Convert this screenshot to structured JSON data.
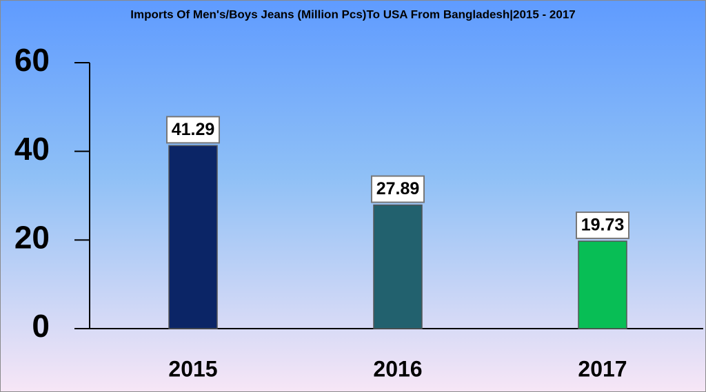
{
  "chart_data": {
    "type": "bar",
    "title": "Imports Of Men's/Boys Jeans (Million Pcs)To USA From Bangladesh|2015 - 2017",
    "categories": [
      "2015",
      "2016",
      "2017"
    ],
    "values": [
      41.29,
      27.89,
      19.73
    ],
    "colors": [
      "#0b2566",
      "#22616e",
      "#08be55"
    ],
    "ylim": [
      0,
      60
    ],
    "yticks": [
      0,
      20,
      40,
      60
    ],
    "grid": false
  }
}
